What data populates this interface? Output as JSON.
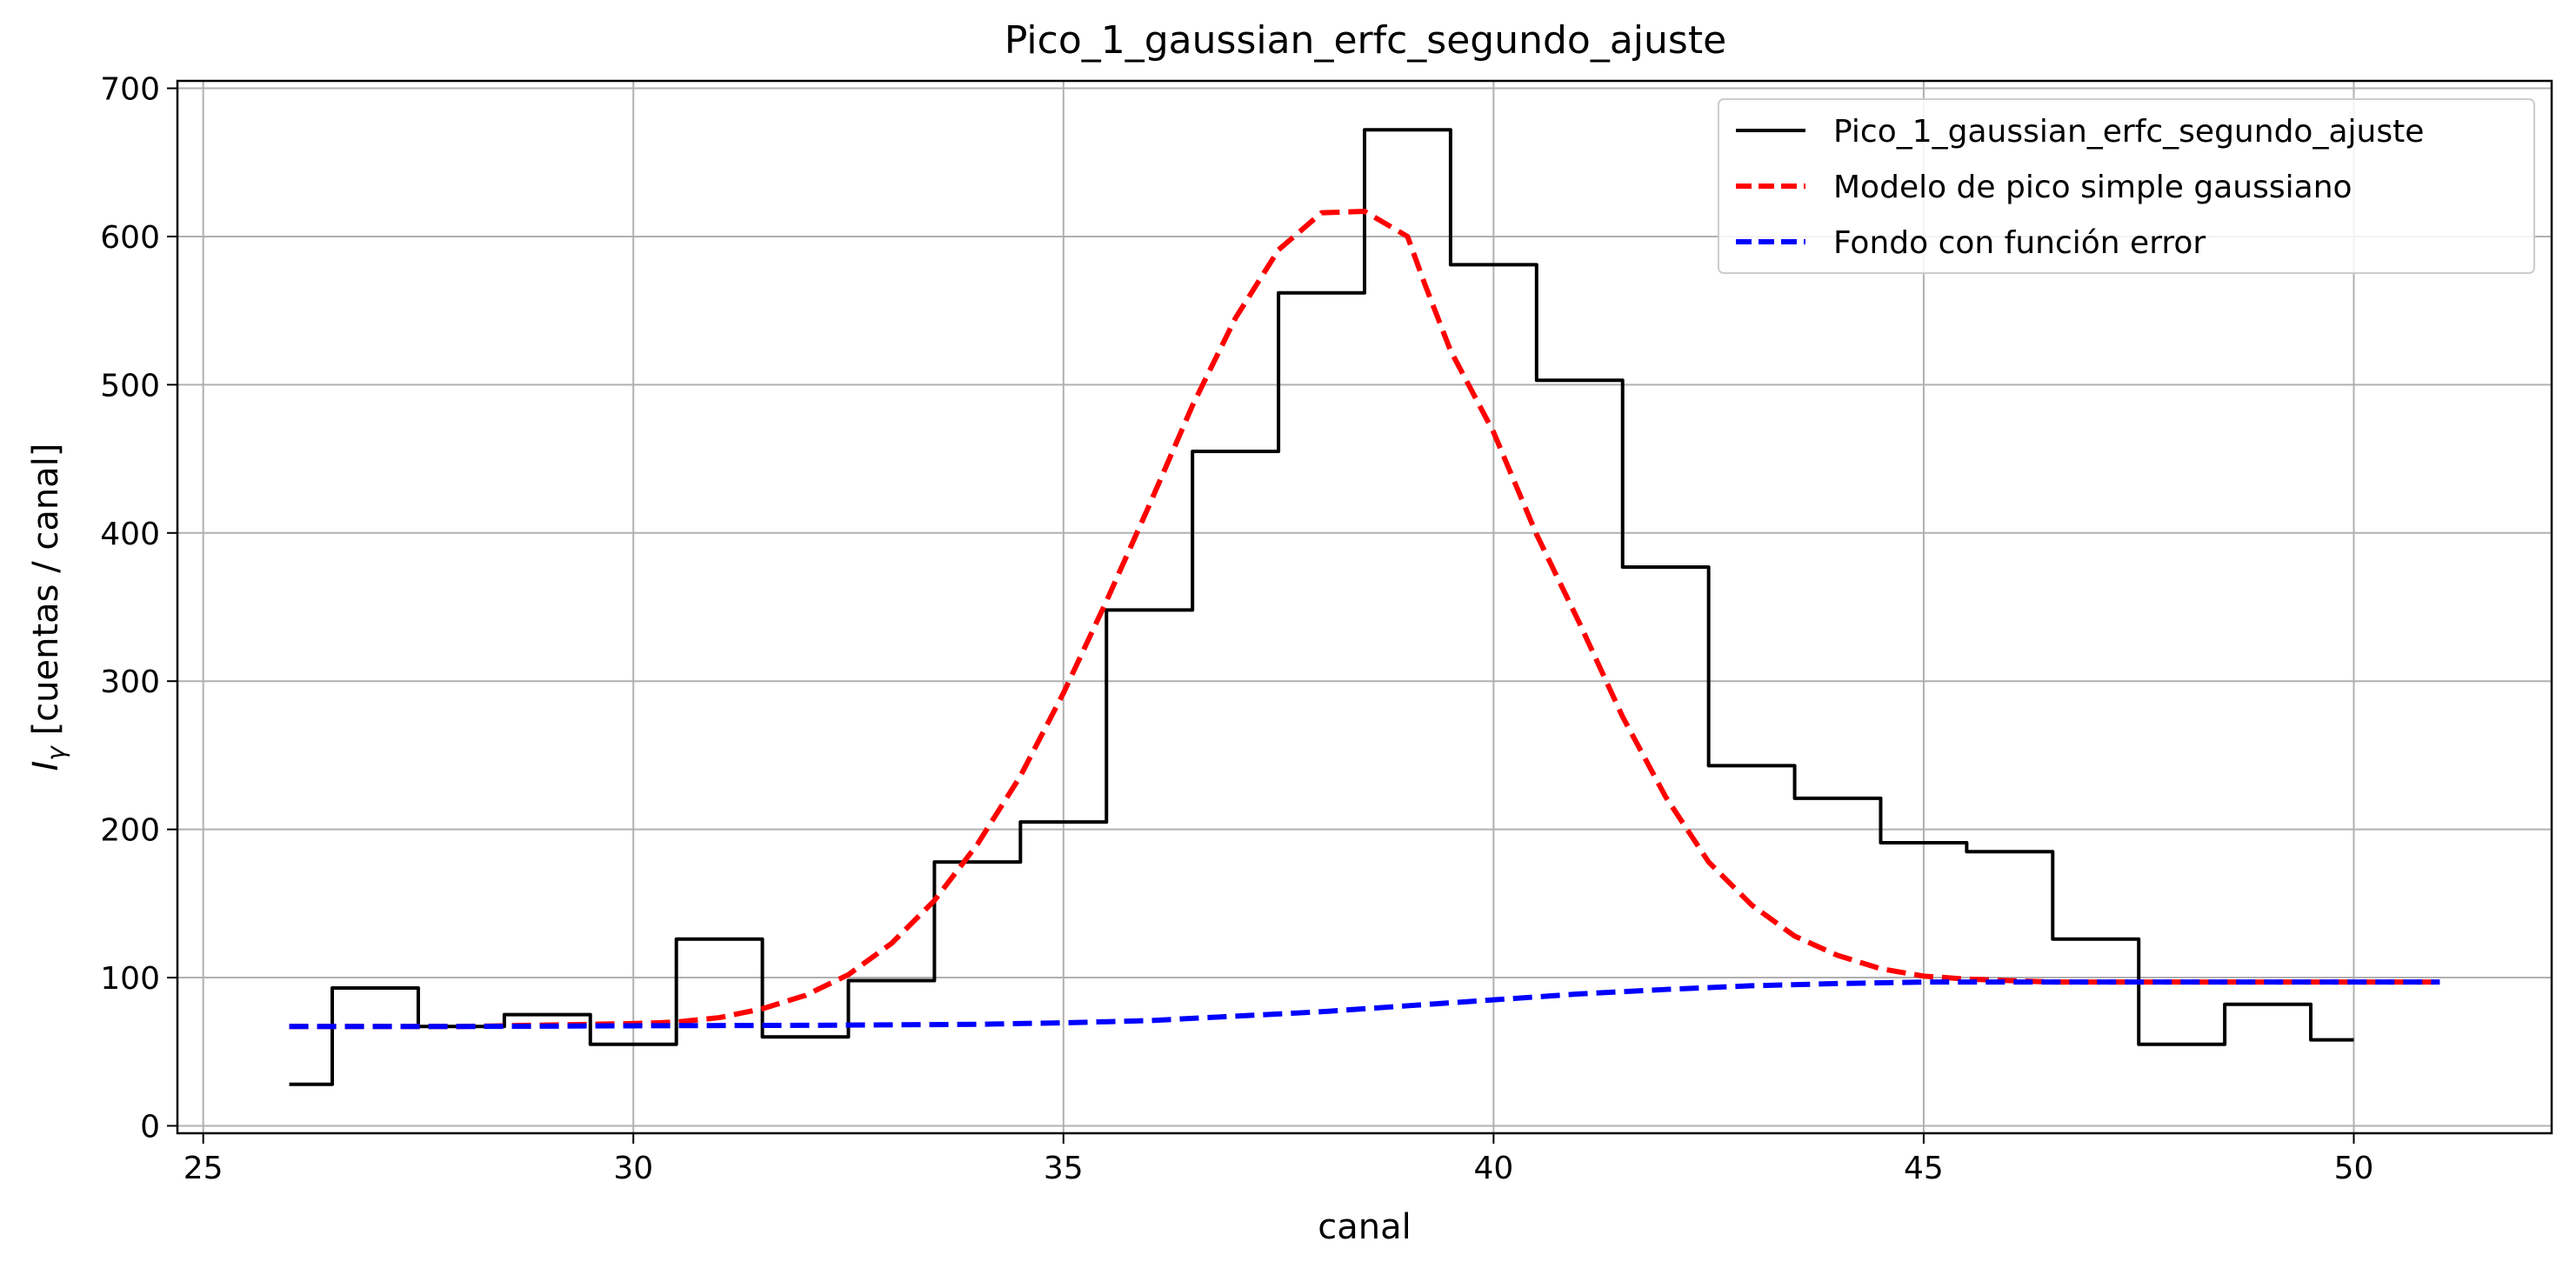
{
  "chart_data": {
    "type": "line",
    "title": "Pico_1_gaussian_erfc_segundo_ajuste",
    "xlabel": "canal",
    "ylabel_sym": "I",
    "ylabel_sub": "γ",
    "ylabel_rest": " [cuentas / canal]",
    "xlim": [
      24.7,
      52.3
    ],
    "ylim": [
      -5,
      705
    ],
    "xticks": [
      25,
      30,
      35,
      40,
      45,
      50
    ],
    "yticks": [
      0,
      100,
      200,
      300,
      400,
      500,
      600,
      700
    ],
    "grid": true,
    "legend_position": "top-right",
    "series": [
      {
        "name": "Pico_1_gaussian_erfc_segundo_ajuste",
        "style": "step",
        "color": "#000000",
        "dash": "solid",
        "x": [
          26,
          27,
          28,
          29,
          30,
          31,
          32,
          33,
          34,
          35,
          36,
          37,
          38,
          39,
          40,
          41,
          42,
          43,
          44,
          45,
          46,
          47,
          48,
          49,
          50
        ],
        "y": [
          28,
          93,
          67,
          75,
          55,
          126,
          60,
          98,
          178,
          205,
          348,
          455,
          562,
          672,
          581,
          503,
          377,
          243,
          221,
          191,
          185,
          126,
          55,
          82,
          58
        ]
      },
      {
        "name": "Modelo de pico simple gaussiano",
        "style": "line",
        "color": "#ff0000",
        "dash": "dashed",
        "x": [
          26,
          27,
          28,
          29,
          30,
          30.5,
          31,
          31.5,
          32,
          32.5,
          33,
          33.5,
          34,
          34.5,
          35,
          35.5,
          36,
          36.5,
          37,
          37.5,
          38,
          38.5,
          39,
          39.2,
          39.5,
          40,
          40.5,
          41,
          41.5,
          42,
          42.5,
          43,
          43.5,
          44,
          44.5,
          45,
          45.5,
          46,
          46.5,
          47,
          47.5,
          48,
          48.5,
          49,
          50,
          51
        ],
        "y": [
          67,
          67,
          67,
          68,
          69,
          70,
          73,
          79,
          88,
          102,
          123,
          152,
          190,
          236,
          292,
          354,
          419,
          486,
          545,
          591,
          616,
          617,
          600,
          568,
          523,
          468,
          399,
          339,
          276,
          222,
          178,
          149,
          128,
          115,
          106,
          101,
          99,
          98,
          97,
          97,
          97,
          97,
          97,
          97,
          97,
          97
        ]
      },
      {
        "name": "Fondo con función error",
        "style": "line",
        "color": "#0000ff",
        "dash": "dashed",
        "x": [
          26,
          28,
          30,
          32,
          34,
          35,
          36,
          37,
          38,
          39,
          40,
          41,
          42,
          43,
          44,
          45,
          46,
          48,
          50,
          51
        ],
        "y": [
          67,
          67,
          67.5,
          67.8,
          68.5,
          69.5,
          71,
          74,
          77,
          81,
          85,
          89,
          92,
          94.5,
          96,
          97,
          97,
          97,
          97,
          97
        ]
      }
    ]
  }
}
